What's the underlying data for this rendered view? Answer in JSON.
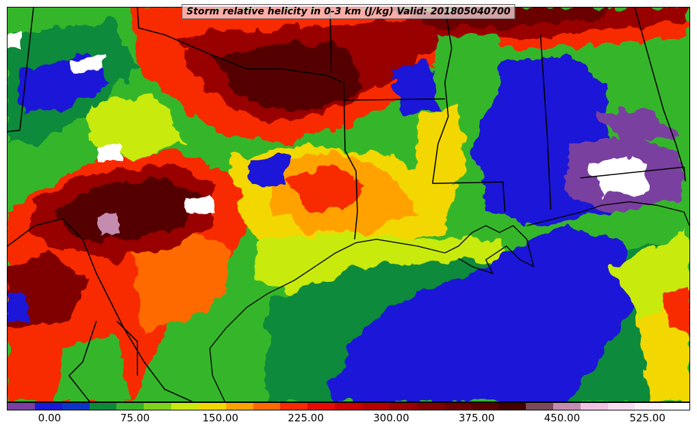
{
  "title": "Storm relative helicity in 0-3 km (J/kg) Valid: 201805040700",
  "colorbar": {
    "colors": [
      "#7a3fa0",
      "#1a18d8",
      "#0a36c8",
      "#0c8a3a",
      "#35b62a",
      "#7fd31e",
      "#c8ea10",
      "#f2d800",
      "#ffa200",
      "#ff6a00",
      "#f82a00",
      "#e60a00",
      "#cc0000",
      "#b30000",
      "#990000",
      "#800000",
      "#6a0000",
      "#550000",
      "#420000",
      "#7a4a5a",
      "#c48db0",
      "#efc2e6",
      "#f7dcf2",
      "#fff0fa",
      "#ffffff"
    ],
    "tick_labels": [
      "0.00",
      "75.00",
      "150.00",
      "225.00",
      "300.00",
      "375.00",
      "450.00",
      "525.00"
    ],
    "tick_values": [
      0,
      75,
      150,
      225,
      300,
      375,
      450,
      525
    ],
    "range": [
      -37.5,
      562.5
    ]
  },
  "map": {
    "variable": "Storm relative helicity in 0-3 km",
    "units": "J/kg",
    "valid_time": "201805040700"
  }
}
